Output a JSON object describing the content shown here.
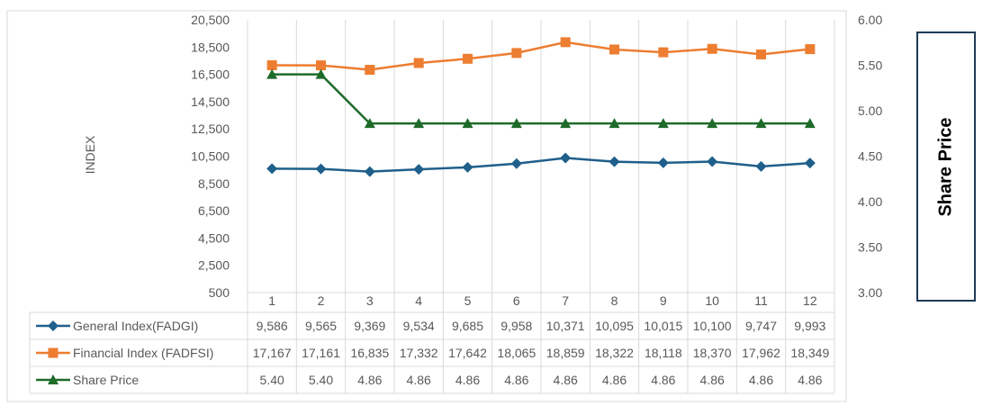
{
  "chart_data": {
    "type": "line",
    "title": "",
    "categories": [
      "1",
      "2",
      "3",
      "4",
      "5",
      "6",
      "7",
      "8",
      "9",
      "10",
      "11",
      "12"
    ],
    "ylabel": "INDEX",
    "y2label": "Share Price",
    "ylim": [
      500,
      20500
    ],
    "y2lim": [
      3.0,
      6.0
    ],
    "yticks": [
      "20,500",
      "18,500",
      "16,500",
      "14,500",
      "12,500",
      "10,500",
      "8,500",
      "6,500",
      "4,500",
      "2,500",
      "500"
    ],
    "y2ticks": [
      "6.00",
      "5.50",
      "5.00",
      "4.50",
      "4.00",
      "3.50",
      "3.00"
    ],
    "grid": "vertical category separators",
    "legend": "data table below chart",
    "series": [
      {
        "name": "General Index(FADGI)",
        "axis": "left",
        "marker": "diamond",
        "color": "#1f5f8b",
        "values": [
          9586,
          9565,
          9369,
          9534,
          9685,
          9958,
          10371,
          10095,
          10015,
          10100,
          9747,
          9993
        ],
        "labels": [
          "9,586",
          "9,565",
          "9,369",
          "9,534",
          "9,685",
          "9,958",
          "10,371",
          "10,095",
          "10,015",
          "10,100",
          "9,747",
          "9,993"
        ]
      },
      {
        "name": "Financial Index (FADFSI)",
        "axis": "left",
        "marker": "square",
        "color": "#ed7d31",
        "values": [
          17167,
          17161,
          16835,
          17332,
          17642,
          18065,
          18859,
          18322,
          18118,
          18370,
          17962,
          18349
        ],
        "labels": [
          "17,167",
          "17,161",
          "16,835",
          "17,332",
          "17,642",
          "18,065",
          "18,859",
          "18,322",
          "18,118",
          "18,370",
          "17,962",
          "18,349"
        ]
      },
      {
        "name": "Share Price",
        "axis": "right",
        "marker": "triangle",
        "color": "#1e6b2a",
        "values": [
          5.4,
          5.4,
          4.86,
          4.86,
          4.86,
          4.86,
          4.86,
          4.86,
          4.86,
          4.86,
          4.86,
          4.86
        ],
        "labels": [
          "5.40",
          "5.40",
          "4.86",
          "4.86",
          "4.86",
          "4.86",
          "4.86",
          "4.86",
          "4.86",
          "4.86",
          "4.86",
          "4.86"
        ]
      }
    ]
  },
  "side_box": {
    "label": "Share Price"
  }
}
